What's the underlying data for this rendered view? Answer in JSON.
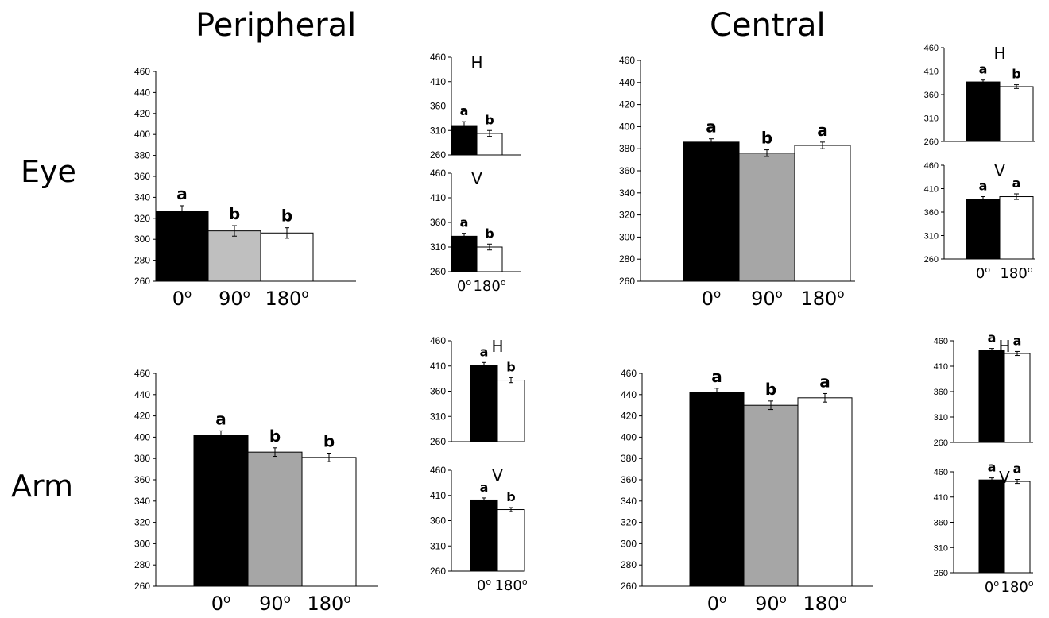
{
  "headers": {
    "peripheral": "Peripheral",
    "central": "Central",
    "eye": "Eye",
    "arm": "Arm"
  },
  "colors": {
    "black": "#000000",
    "gray_light": "#bfbfbf",
    "gray_dark": "#a6a6a6",
    "white": "#ffffff"
  },
  "chart_data": [
    {
      "id": "peripheral-eye-main",
      "type": "bar",
      "categories": [
        "0o",
        "90o",
        "180o"
      ],
      "values": [
        327,
        308,
        306
      ],
      "errors": [
        5,
        5,
        5
      ],
      "labels": [
        "a",
        "b",
        "b"
      ],
      "fills": [
        "#000000",
        "#bfbfbf",
        "#ffffff"
      ],
      "ylim": [
        260,
        460
      ],
      "yticks": [
        260,
        280,
        300,
        320,
        340,
        360,
        380,
        400,
        420,
        440,
        460
      ],
      "panel_label": ""
    },
    {
      "id": "peripheral-eye-h",
      "type": "bar",
      "categories": [],
      "values": [
        320,
        304
      ],
      "errors": [
        8,
        6
      ],
      "labels": [
        "a",
        "b"
      ],
      "fills": [
        "#000000",
        "#ffffff"
      ],
      "ylim": [
        260,
        460
      ],
      "yticks": [
        260,
        310,
        360,
        410,
        460
      ],
      "panel_label": "H"
    },
    {
      "id": "peripheral-eye-v",
      "type": "bar",
      "categories": [
        "0o",
        "180o"
      ],
      "values": [
        332,
        310
      ],
      "errors": [
        6,
        6
      ],
      "labels": [
        "a",
        "b"
      ],
      "fills": [
        "#000000",
        "#ffffff"
      ],
      "ylim": [
        260,
        460
      ],
      "yticks": [
        260,
        310,
        360,
        410,
        460
      ],
      "panel_label": "V"
    },
    {
      "id": "central-eye-main",
      "type": "bar",
      "categories": [
        "0o",
        "90o",
        "180o"
      ],
      "values": [
        386,
        376,
        383
      ],
      "errors": [
        3,
        3,
        3
      ],
      "labels": [
        "a",
        "b",
        "a"
      ],
      "fills": [
        "#000000",
        "#a6a6a6",
        "#ffffff"
      ],
      "ylim": [
        260,
        460
      ],
      "yticks": [
        260,
        280,
        300,
        320,
        340,
        360,
        380,
        400,
        420,
        440,
        460
      ],
      "panel_label": ""
    },
    {
      "id": "central-eye-h",
      "type": "bar",
      "categories": [],
      "values": [
        387,
        377
      ],
      "errors": [
        4,
        4
      ],
      "labels": [
        "a",
        "b"
      ],
      "fills": [
        "#000000",
        "#ffffff"
      ],
      "ylim": [
        260,
        460
      ],
      "yticks": [
        260,
        310,
        360,
        410,
        460
      ],
      "panel_label": "H"
    },
    {
      "id": "central-eye-v",
      "type": "bar",
      "categories": [
        "0o",
        "180o"
      ],
      "values": [
        387,
        393
      ],
      "errors": [
        6,
        6
      ],
      "labels": [
        "a",
        "a"
      ],
      "fills": [
        "#000000",
        "#ffffff"
      ],
      "ylim": [
        260,
        460
      ],
      "yticks": [
        260,
        310,
        360,
        410,
        460
      ],
      "panel_label": "V"
    },
    {
      "id": "peripheral-arm-main",
      "type": "bar",
      "categories": [
        "0o",
        "90o",
        "180o"
      ],
      "values": [
        402,
        386,
        381
      ],
      "errors": [
        4,
        4,
        4
      ],
      "labels": [
        "a",
        "b",
        "b"
      ],
      "fills": [
        "#000000",
        "#a6a6a6",
        "#ffffff"
      ],
      "ylim": [
        260,
        460
      ],
      "yticks": [
        260,
        280,
        300,
        320,
        340,
        360,
        380,
        400,
        420,
        440,
        460
      ],
      "panel_label": ""
    },
    {
      "id": "peripheral-arm-h",
      "type": "bar",
      "categories": [],
      "values": [
        411,
        382
      ],
      "errors": [
        6,
        5
      ],
      "labels": [
        "a",
        "b"
      ],
      "fills": [
        "#000000",
        "#ffffff"
      ],
      "ylim": [
        260,
        460
      ],
      "yticks": [
        260,
        310,
        360,
        410,
        460
      ],
      "panel_label": "H"
    },
    {
      "id": "peripheral-arm-v",
      "type": "bar",
      "categories": [
        "0o",
        "180o"
      ],
      "values": [
        401,
        382
      ],
      "errors": [
        4,
        4
      ],
      "labels": [
        "a",
        "b"
      ],
      "fills": [
        "#000000",
        "#ffffff"
      ],
      "ylim": [
        260,
        460
      ],
      "yticks": [
        260,
        310,
        360,
        410,
        460
      ],
      "panel_label": "V"
    },
    {
      "id": "central-arm-main",
      "type": "bar",
      "categories": [
        "0o",
        "90o",
        "180o"
      ],
      "values": [
        442,
        430,
        437
      ],
      "errors": [
        4,
        4,
        4
      ],
      "labels": [
        "a",
        "b",
        "a"
      ],
      "fills": [
        "#000000",
        "#a6a6a6",
        "#ffffff"
      ],
      "ylim": [
        260,
        460
      ],
      "yticks": [
        260,
        280,
        300,
        320,
        340,
        360,
        380,
        400,
        420,
        440,
        460
      ],
      "panel_label": ""
    },
    {
      "id": "central-arm-h",
      "type": "bar",
      "categories": [],
      "values": [
        441,
        435
      ],
      "errors": [
        4,
        4
      ],
      "labels": [
        "a",
        "a"
      ],
      "fills": [
        "#000000",
        "#ffffff"
      ],
      "ylim": [
        260,
        460
      ],
      "yticks": [
        260,
        310,
        360,
        410,
        460
      ],
      "panel_label": "H"
    },
    {
      "id": "central-arm-v",
      "type": "bar",
      "categories": [
        "0o",
        "180o"
      ],
      "values": [
        444,
        441
      ],
      "errors": [
        4,
        4
      ],
      "labels": [
        "a",
        "a"
      ],
      "fills": [
        "#000000",
        "#ffffff"
      ],
      "ylim": [
        260,
        460
      ],
      "yticks": [
        260,
        310,
        360,
        410,
        460
      ],
      "panel_label": "V"
    }
  ]
}
